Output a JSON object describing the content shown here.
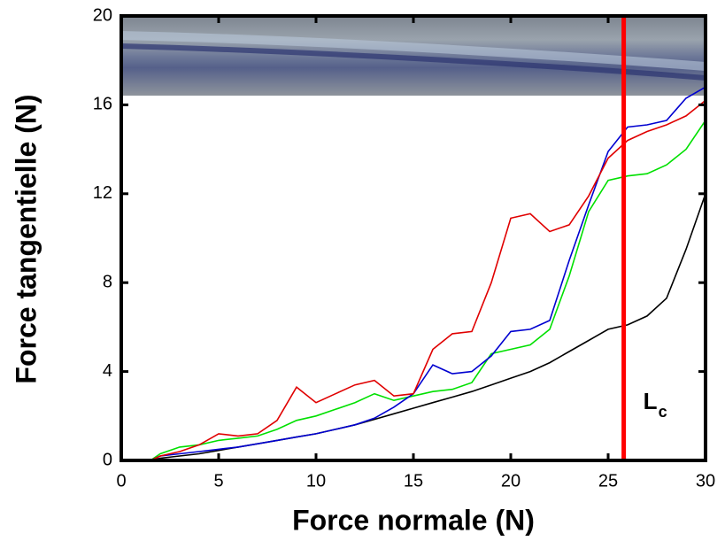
{
  "chart_data": {
    "type": "line",
    "xlabel": "Force normale (N)",
    "ylabel": "Force tangentielle (N)",
    "x": [
      1.5,
      2,
      3,
      4,
      5,
      6,
      7,
      8,
      9,
      10,
      11,
      12,
      13,
      14,
      15,
      16,
      17,
      18,
      19,
      20,
      21,
      22,
      23,
      24,
      25,
      26,
      27,
      28,
      29,
      30
    ],
    "series": [
      {
        "color": "#000000",
        "values": [
          0,
          0.1,
          0.2,
          0.3,
          0.45,
          0.6,
          0.75,
          0.9,
          1.05,
          1.2,
          1.4,
          1.6,
          1.85,
          2.1,
          2.35,
          2.6,
          2.85,
          3.1,
          3.4,
          3.7,
          4.0,
          4.4,
          4.9,
          5.4,
          5.9,
          6.1,
          6.5,
          7.3,
          9.5,
          12.0
        ]
      },
      {
        "color": "#00e000",
        "values": [
          0,
          0.3,
          0.6,
          0.7,
          0.9,
          1.0,
          1.1,
          1.4,
          1.8,
          2.0,
          2.3,
          2.6,
          3.0,
          2.7,
          2.9,
          3.1,
          3.2,
          3.5,
          4.8,
          5.0,
          5.2,
          5.9,
          8.3,
          11.2,
          12.6,
          12.8,
          12.9,
          13.3,
          14.0,
          15.3
        ]
      },
      {
        "color": "#0000d0",
        "values": [
          0,
          0.2,
          0.3,
          0.4,
          0.5,
          0.6,
          0.75,
          0.9,
          1.05,
          1.2,
          1.4,
          1.6,
          1.9,
          2.4,
          3.0,
          4.3,
          3.9,
          4.0,
          4.7,
          5.8,
          5.9,
          6.3,
          9.0,
          11.5,
          13.9,
          15.0,
          15.1,
          15.3,
          16.3,
          16.8
        ]
      },
      {
        "color": "#e00000",
        "values": [
          0,
          0.2,
          0.4,
          0.7,
          1.2,
          1.1,
          1.2,
          1.8,
          3.3,
          2.6,
          3.0,
          3.4,
          3.6,
          2.9,
          3.0,
          5.0,
          5.7,
          5.8,
          8.0,
          10.9,
          11.1,
          10.3,
          10.6,
          11.9,
          13.6,
          14.4,
          14.8,
          15.1,
          15.5,
          16.2
        ]
      }
    ],
    "xlim": [
      0,
      30
    ],
    "xticks": [
      0,
      5,
      10,
      15,
      20,
      25,
      30
    ],
    "ylim": [
      0,
      20
    ],
    "yticks": [
      0,
      4,
      8,
      12,
      16,
      20
    ],
    "marker_line": {
      "x": 25.8,
      "color": "#ff0000",
      "label": "L",
      "subscript": "c"
    }
  }
}
